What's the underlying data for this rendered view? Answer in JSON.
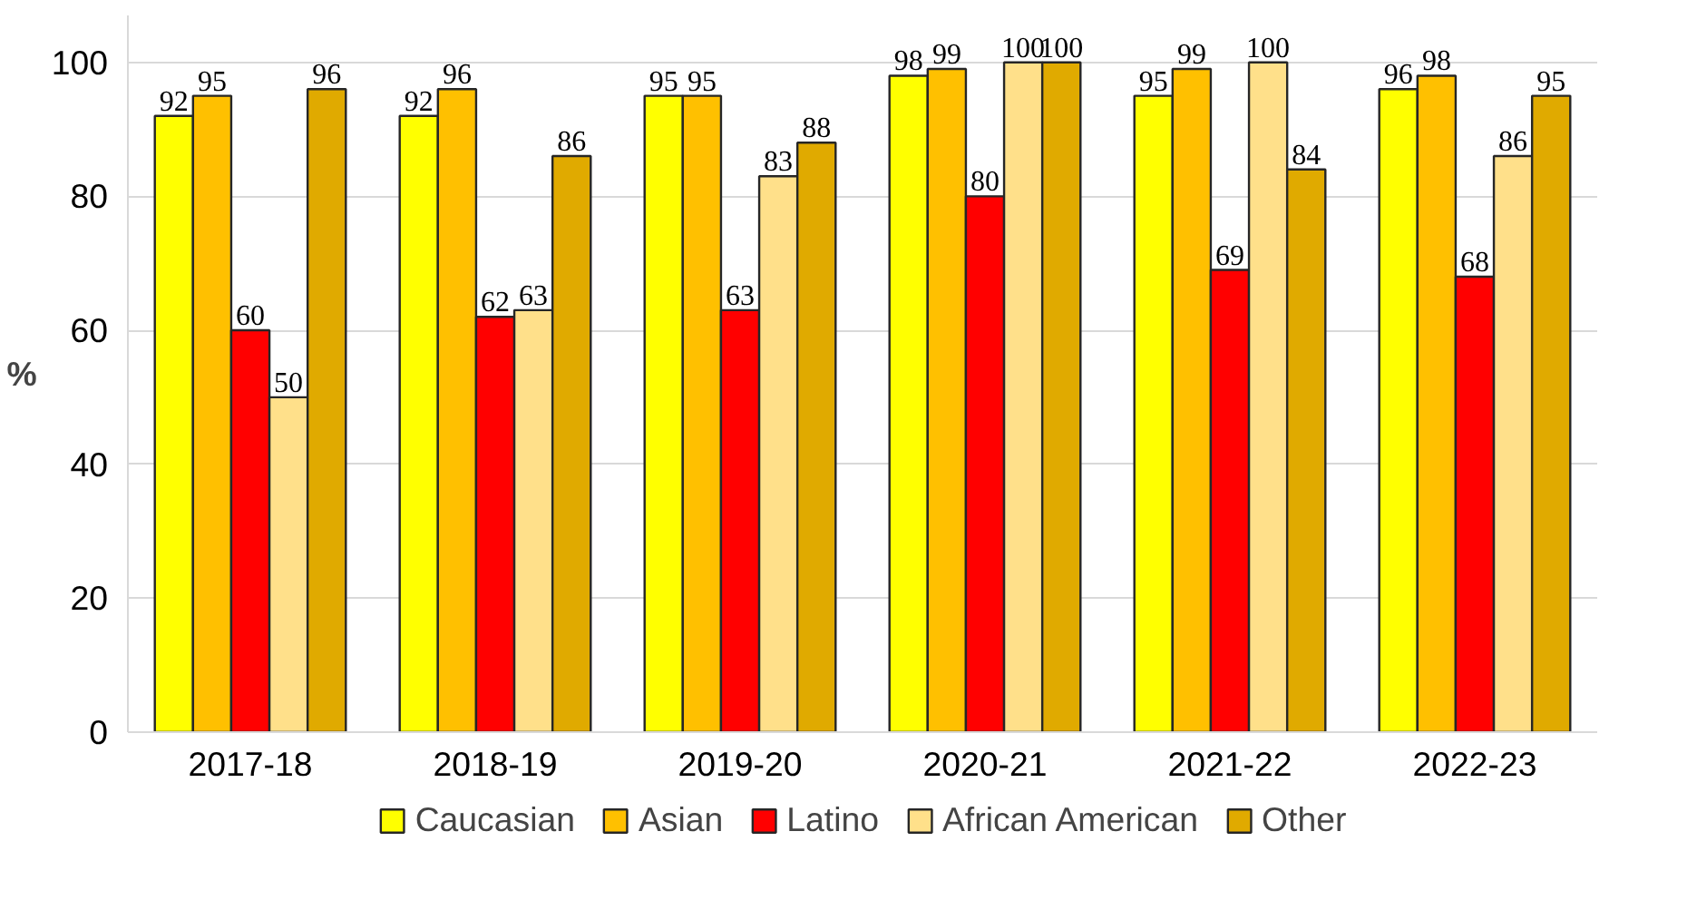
{
  "chart_data": {
    "type": "bar",
    "ylabel": "%",
    "categories": [
      "2017-18",
      "2018-19",
      "2019-20",
      "2020-21",
      "2021-22",
      "2022-23"
    ],
    "series": [
      {
        "name": "Caucasian",
        "color": "#ffff00",
        "values": [
          92,
          92,
          95,
          98,
          95,
          96
        ]
      },
      {
        "name": "Asian",
        "color": "#ffc000",
        "values": [
          95,
          96,
          95,
          99,
          99,
          98
        ]
      },
      {
        "name": "Latino",
        "color": "#ff0000",
        "values": [
          60,
          62,
          63,
          80,
          69,
          68
        ]
      },
      {
        "name": "African American",
        "color": "#ffe08a",
        "values": [
          50,
          63,
          83,
          100,
          100,
          86
        ]
      },
      {
        "name": "Other",
        "color": "#e0aa00",
        "values": [
          96,
          86,
          88,
          100,
          84,
          95
        ]
      }
    ],
    "ylim": [
      0,
      107
    ],
    "yticks": [
      0,
      20,
      40,
      60,
      80,
      100
    ],
    "grid": "y",
    "legend": "bottom",
    "data_labels": true
  }
}
